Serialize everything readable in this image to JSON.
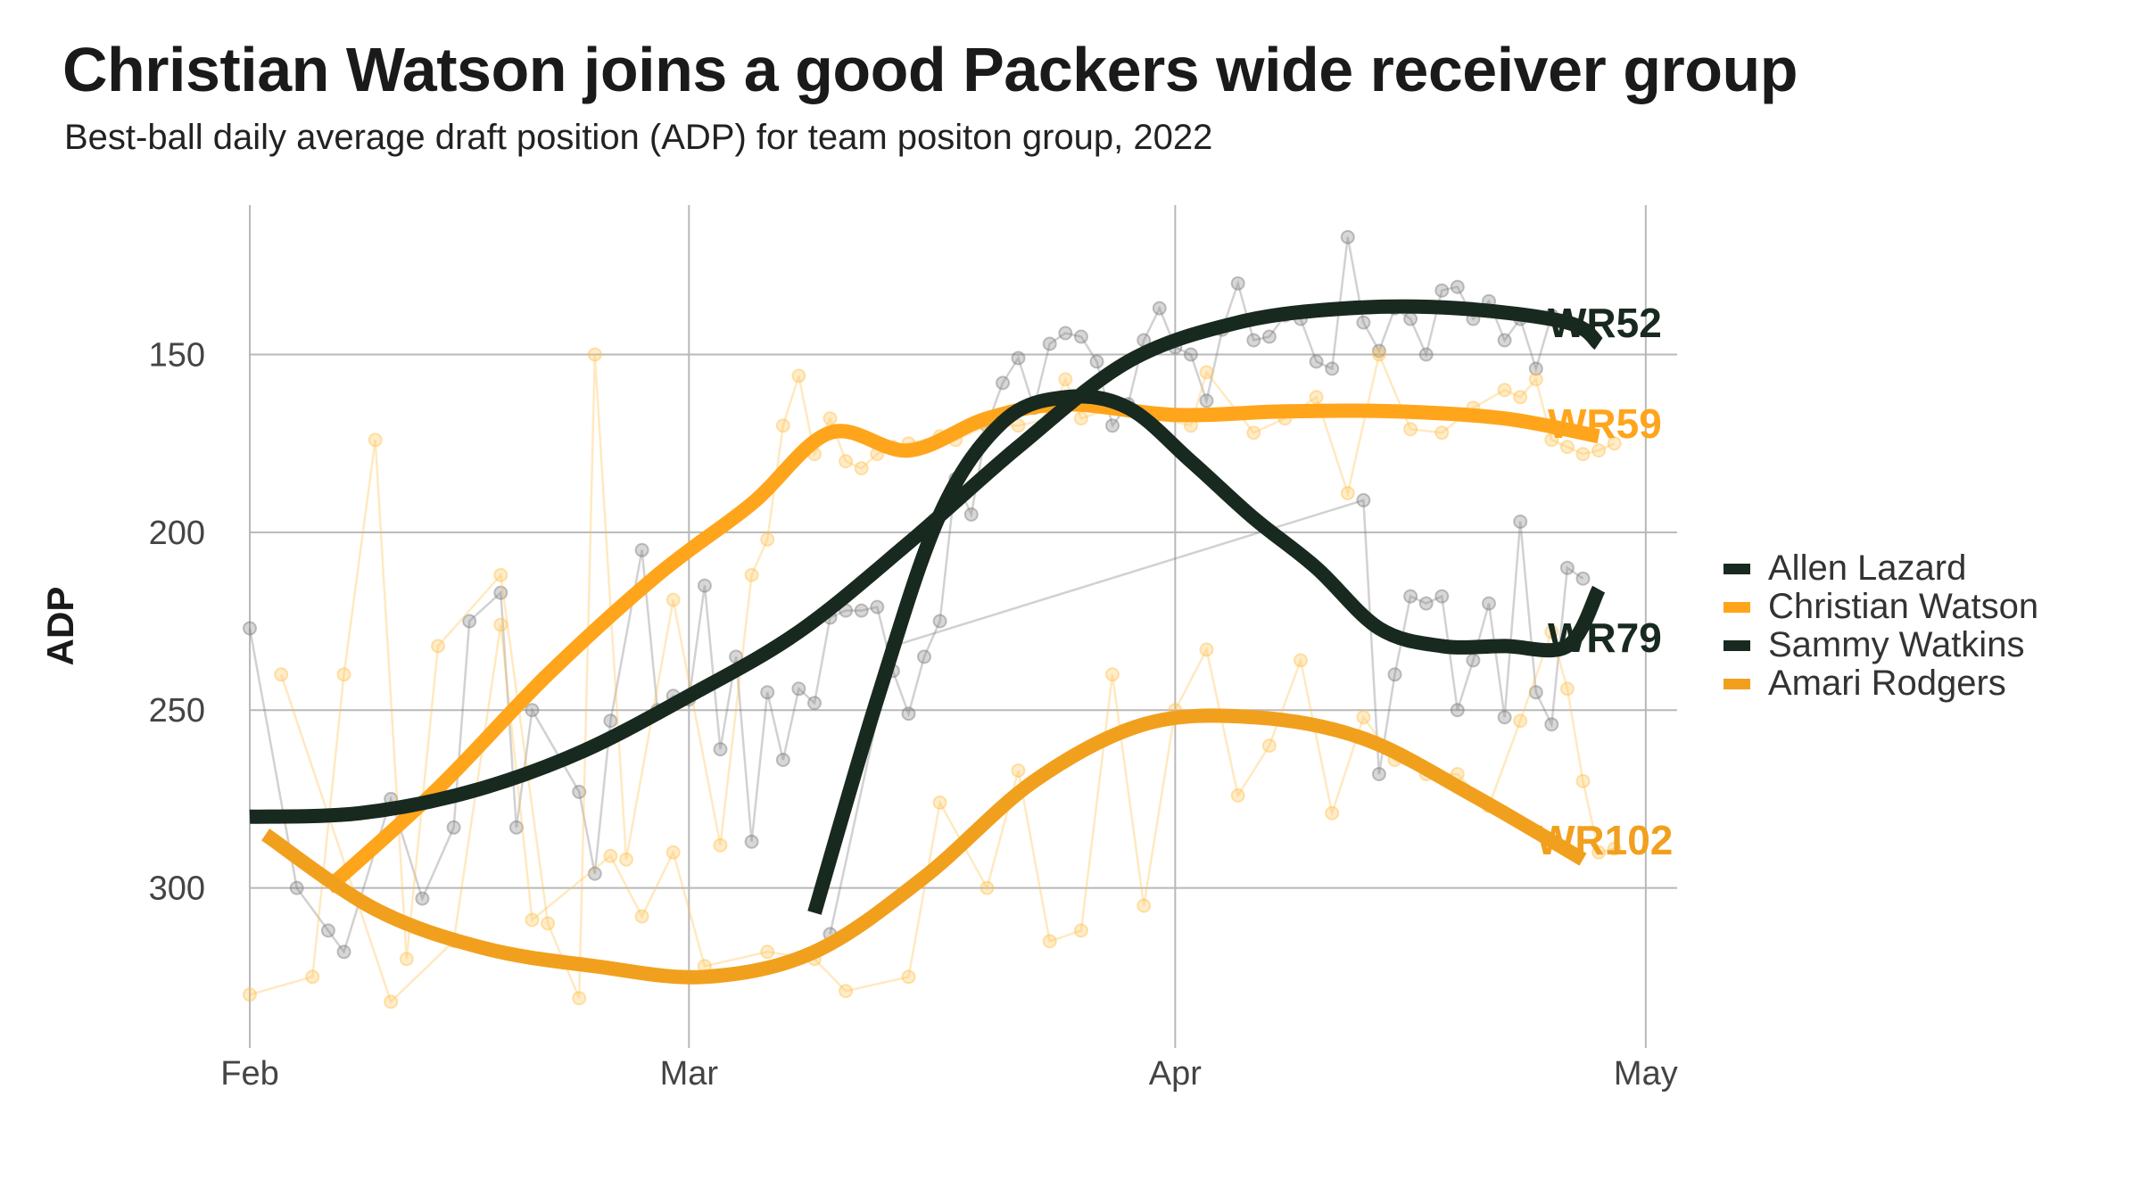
{
  "title": "Christian Watson joins a good Packers wide receiver group",
  "subtitle": "Best-ball daily average draft position (ADP) for team positon group, 2022",
  "chart_data": {
    "type": "line",
    "title": "Christian Watson joins a good Packers wide receiver group",
    "subtitle": "Best-ball daily average draft position (ADP) for team positon group, 2022",
    "xlabel": "",
    "ylabel": "ADP",
    "y_reversed": true,
    "ylim": [
      345,
      108
    ],
    "xlim": [
      "2022-02-01",
      "2022-05-03"
    ],
    "x_ticks": [
      {
        "date": "2022-02-01",
        "label": "Feb"
      },
      {
        "date": "2022-03-01",
        "label": "Mar"
      },
      {
        "date": "2022-04-01",
        "label": "Apr"
      },
      {
        "date": "2022-05-01",
        "label": "May"
      }
    ],
    "y_ticks": [
      150,
      200,
      250,
      300
    ],
    "grid": true,
    "legend_position": "right",
    "series": [
      {
        "name": "Allen Lazard",
        "color": "#18291f",
        "end_label": "WR52",
        "smoothed": [
          [
            "2022-02-01",
            280
          ],
          [
            "2022-02-08",
            279
          ],
          [
            "2022-02-15",
            273
          ],
          [
            "2022-02-22",
            262
          ],
          [
            "2022-03-01",
            246
          ],
          [
            "2022-03-08",
            228
          ],
          [
            "2022-03-15",
            203
          ],
          [
            "2022-03-22",
            176
          ],
          [
            "2022-03-29",
            152
          ],
          [
            "2022-04-05",
            141
          ],
          [
            "2022-04-12",
            137
          ],
          [
            "2022-04-19",
            137
          ],
          [
            "2022-04-26",
            141
          ],
          [
            "2022-04-28",
            147
          ]
        ],
        "daily": [
          [
            "2022-02-01",
            227
          ],
          [
            "2022-02-04",
            300
          ],
          [
            "2022-02-06",
            312
          ],
          [
            "2022-02-07",
            318
          ],
          [
            "2022-02-10",
            275
          ],
          [
            "2022-02-12",
            303
          ],
          [
            "2022-02-14",
            283
          ],
          [
            "2022-02-15",
            225
          ],
          [
            "2022-02-17",
            217
          ],
          [
            "2022-02-18",
            283
          ],
          [
            "2022-02-19",
            250
          ],
          [
            "2022-02-22",
            273
          ],
          [
            "2022-02-23",
            296
          ],
          [
            "2022-02-24",
            253
          ],
          [
            "2022-02-26",
            205
          ],
          [
            "2022-02-27",
            250
          ],
          [
            "2022-02-28",
            246
          ],
          [
            "2022-03-01",
            247
          ],
          [
            "2022-03-02",
            215
          ],
          [
            "2022-03-03",
            261
          ],
          [
            "2022-03-04",
            235
          ],
          [
            "2022-03-05",
            287
          ],
          [
            "2022-03-06",
            245
          ],
          [
            "2022-03-07",
            264
          ],
          [
            "2022-03-08",
            244
          ],
          [
            "2022-03-09",
            248
          ],
          [
            "2022-03-10",
            224
          ],
          [
            "2022-03-11",
            222
          ],
          [
            "2022-03-12",
            222
          ],
          [
            "2022-03-13",
            221
          ],
          [
            "2022-03-14",
            239
          ],
          [
            "2022-03-15",
            251
          ],
          [
            "2022-03-16",
            235
          ],
          [
            "2022-03-17",
            225
          ],
          [
            "2022-03-18",
            185
          ],
          [
            "2022-03-19",
            195
          ],
          [
            "2022-03-20",
            170
          ],
          [
            "2022-03-21",
            158
          ],
          [
            "2022-03-22",
            151
          ],
          [
            "2022-03-23",
            165
          ],
          [
            "2022-03-24",
            147
          ],
          [
            "2022-03-25",
            144
          ],
          [
            "2022-03-26",
            145
          ],
          [
            "2022-03-27",
            152
          ],
          [
            "2022-03-28",
            170
          ],
          [
            "2022-03-29",
            164
          ],
          [
            "2022-03-30",
            146
          ],
          [
            "2022-03-31",
            137
          ],
          [
            "2022-04-01",
            148
          ],
          [
            "2022-04-02",
            150
          ],
          [
            "2022-04-03",
            163
          ],
          [
            "2022-04-04",
            143
          ],
          [
            "2022-04-05",
            130
          ],
          [
            "2022-04-06",
            146
          ],
          [
            "2022-04-07",
            145
          ],
          [
            "2022-04-08",
            139
          ],
          [
            "2022-04-09",
            140
          ],
          [
            "2022-04-10",
            152
          ],
          [
            "2022-04-11",
            154
          ],
          [
            "2022-04-12",
            117
          ],
          [
            "2022-04-13",
            141
          ],
          [
            "2022-04-14",
            149
          ],
          [
            "2022-04-15",
            137
          ],
          [
            "2022-04-16",
            140
          ],
          [
            "2022-04-17",
            150
          ],
          [
            "2022-04-18",
            132
          ],
          [
            "2022-04-19",
            131
          ],
          [
            "2022-04-20",
            140
          ],
          [
            "2022-04-21",
            135
          ],
          [
            "2022-04-22",
            146
          ],
          [
            "2022-04-23",
            140
          ],
          [
            "2022-04-24",
            154
          ],
          [
            "2022-04-25",
            139
          ]
        ]
      },
      {
        "name": "Christian Watson",
        "color": "#ffa51c",
        "end_label": "WR59",
        "smoothed": [
          [
            "2022-02-06",
            300
          ],
          [
            "2022-02-13",
            272
          ],
          [
            "2022-02-20",
            240
          ],
          [
            "2022-02-27",
            212
          ],
          [
            "2022-03-05",
            192
          ],
          [
            "2022-03-10",
            172
          ],
          [
            "2022-03-15",
            177
          ],
          [
            "2022-03-20",
            168
          ],
          [
            "2022-03-25",
            164
          ],
          [
            "2022-04-01",
            167
          ],
          [
            "2022-04-08",
            166
          ],
          [
            "2022-04-15",
            166
          ],
          [
            "2022-04-22",
            168
          ],
          [
            "2022-04-28",
            173
          ]
        ],
        "daily": [
          [
            "2022-02-01",
            330
          ],
          [
            "2022-02-05",
            325
          ],
          [
            "2022-02-07",
            240
          ],
          [
            "2022-02-09",
            174
          ],
          [
            "2022-02-11",
            320
          ],
          [
            "2022-02-13",
            232
          ],
          [
            "2022-02-17",
            212
          ],
          [
            "2022-02-20",
            310
          ],
          [
            "2022-02-22",
            331
          ],
          [
            "2022-02-23",
            150
          ],
          [
            "2022-02-25",
            292
          ],
          [
            "2022-02-28",
            219
          ],
          [
            "2022-03-03",
            288
          ],
          [
            "2022-03-05",
            212
          ],
          [
            "2022-03-06",
            202
          ],
          [
            "2022-03-07",
            170
          ],
          [
            "2022-03-08",
            156
          ],
          [
            "2022-03-09",
            178
          ],
          [
            "2022-03-10",
            168
          ],
          [
            "2022-03-11",
            180
          ],
          [
            "2022-03-12",
            182
          ],
          [
            "2022-03-13",
            178
          ],
          [
            "2022-03-14",
            176
          ],
          [
            "2022-03-15",
            175
          ],
          [
            "2022-03-17",
            173
          ],
          [
            "2022-03-18",
            174
          ],
          [
            "2022-03-20",
            170
          ],
          [
            "2022-03-22",
            170
          ],
          [
            "2022-03-24",
            168
          ],
          [
            "2022-03-25",
            157
          ],
          [
            "2022-03-26",
            168
          ],
          [
            "2022-03-28",
            165
          ],
          [
            "2022-03-30",
            167
          ],
          [
            "2022-04-02",
            170
          ],
          [
            "2022-04-03",
            155
          ],
          [
            "2022-04-06",
            172
          ],
          [
            "2022-04-08",
            168
          ],
          [
            "2022-04-10",
            162
          ],
          [
            "2022-04-12",
            189
          ],
          [
            "2022-04-14",
            150
          ],
          [
            "2022-04-16",
            171
          ],
          [
            "2022-04-18",
            172
          ],
          [
            "2022-04-20",
            165
          ],
          [
            "2022-04-22",
            160
          ],
          [
            "2022-04-23",
            162
          ],
          [
            "2022-04-24",
            157
          ],
          [
            "2022-04-25",
            174
          ],
          [
            "2022-04-26",
            176
          ],
          [
            "2022-04-27",
            178
          ],
          [
            "2022-04-28",
            177
          ],
          [
            "2022-04-29",
            175
          ]
        ]
      },
      {
        "name": "Sammy Watkins",
        "color": "#18291f",
        "end_label": "WR79",
        "smoothed": [
          [
            "2022-03-09",
            307
          ],
          [
            "2022-03-13",
            247
          ],
          [
            "2022-03-17",
            195
          ],
          [
            "2022-03-21",
            169
          ],
          [
            "2022-03-25",
            162
          ],
          [
            "2022-03-29",
            165
          ],
          [
            "2022-04-02",
            180
          ],
          [
            "2022-04-06",
            196
          ],
          [
            "2022-04-10",
            210
          ],
          [
            "2022-04-14",
            227
          ],
          [
            "2022-04-18",
            232
          ],
          [
            "2022-04-22",
            232
          ],
          [
            "2022-04-26",
            232
          ],
          [
            "2022-04-28",
            216
          ]
        ],
        "daily": [
          [
            "2022-03-10",
            313
          ],
          [
            "2022-03-14",
            232
          ],
          [
            "2022-04-13",
            191
          ],
          [
            "2022-04-14",
            268
          ],
          [
            "2022-04-15",
            240
          ],
          [
            "2022-04-16",
            218
          ],
          [
            "2022-04-17",
            220
          ],
          [
            "2022-04-18",
            218
          ],
          [
            "2022-04-19",
            250
          ],
          [
            "2022-04-20",
            236
          ],
          [
            "2022-04-21",
            220
          ],
          [
            "2022-04-22",
            252
          ],
          [
            "2022-04-23",
            197
          ],
          [
            "2022-04-24",
            245
          ],
          [
            "2022-04-25",
            254
          ],
          [
            "2022-04-26",
            210
          ],
          [
            "2022-04-27",
            213
          ]
        ]
      },
      {
        "name": "Amari Rodgers",
        "color": "#f1a01e",
        "end_label": "WR102",
        "smoothed": [
          [
            "2022-02-02",
            285
          ],
          [
            "2022-02-09",
            306
          ],
          [
            "2022-02-16",
            317
          ],
          [
            "2022-02-23",
            322
          ],
          [
            "2022-03-02",
            325
          ],
          [
            "2022-03-09",
            318
          ],
          [
            "2022-03-16",
            297
          ],
          [
            "2022-03-23",
            270
          ],
          [
            "2022-03-30",
            254
          ],
          [
            "2022-04-06",
            252
          ],
          [
            "2022-04-13",
            258
          ],
          [
            "2022-04-20",
            274
          ],
          [
            "2022-04-27",
            292
          ]
        ],
        "daily": [
          [
            "2022-02-03",
            240
          ],
          [
            "2022-02-10",
            332
          ],
          [
            "2022-02-14",
            315
          ],
          [
            "2022-02-17",
            226
          ],
          [
            "2022-02-19",
            309
          ],
          [
            "2022-02-24",
            291
          ],
          [
            "2022-02-26",
            308
          ],
          [
            "2022-02-28",
            290
          ],
          [
            "2022-03-02",
            322
          ],
          [
            "2022-03-06",
            318
          ],
          [
            "2022-03-09",
            320
          ],
          [
            "2022-03-11",
            329
          ],
          [
            "2022-03-15",
            325
          ],
          [
            "2022-03-17",
            276
          ],
          [
            "2022-03-20",
            300
          ],
          [
            "2022-03-22",
            267
          ],
          [
            "2022-03-24",
            315
          ],
          [
            "2022-03-26",
            312
          ],
          [
            "2022-03-28",
            240
          ],
          [
            "2022-03-30",
            305
          ],
          [
            "2022-04-01",
            250
          ],
          [
            "2022-04-03",
            233
          ],
          [
            "2022-04-05",
            274
          ],
          [
            "2022-04-07",
            260
          ],
          [
            "2022-04-09",
            236
          ],
          [
            "2022-04-11",
            279
          ],
          [
            "2022-04-13",
            252
          ],
          [
            "2022-04-15",
            264
          ],
          [
            "2022-04-17",
            268
          ],
          [
            "2022-04-19",
            268
          ],
          [
            "2022-04-21",
            277
          ],
          [
            "2022-04-23",
            253
          ],
          [
            "2022-04-25",
            228
          ],
          [
            "2022-04-26",
            244
          ],
          [
            "2022-04-27",
            270
          ],
          [
            "2022-04-28",
            290
          ],
          [
            "2022-04-29",
            289
          ]
        ]
      }
    ]
  }
}
